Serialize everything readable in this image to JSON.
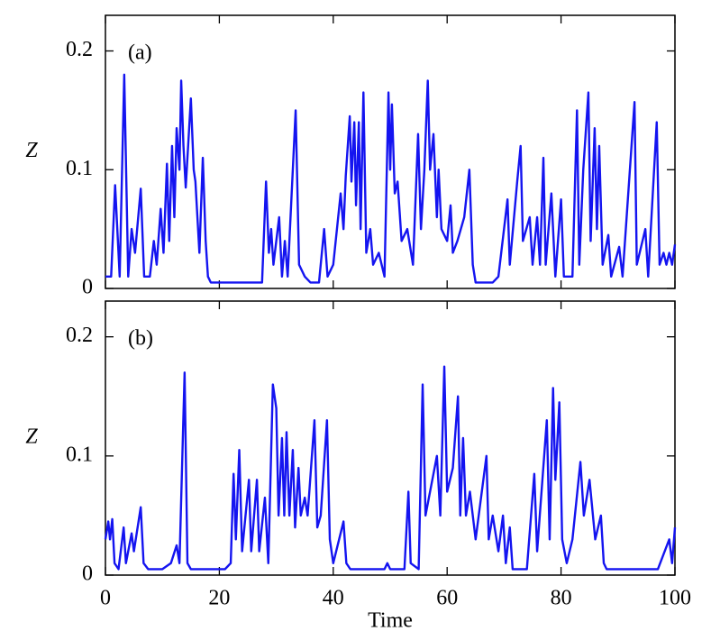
{
  "chart_data": [
    {
      "type": "line",
      "label": "(a)",
      "ylabel": "Z",
      "color": "#1414f0",
      "xlim": [
        0,
        100
      ],
      "ylim": [
        0,
        0.23
      ],
      "xticks": [
        0,
        20,
        40,
        60,
        80,
        100
      ],
      "yticks": [
        0,
        0.1,
        0.2
      ],
      "show_xtick_labels": false,
      "x": [
        0,
        1,
        1.7,
        2.5,
        3.3,
        4,
        4.6,
        5.2,
        6.2,
        6.8,
        7.8,
        8.5,
        9,
        9.7,
        10.2,
        10.8,
        11.2,
        11.7,
        12.1,
        12.5,
        13,
        13.3,
        13.7,
        14.1,
        15,
        15.5,
        15.8,
        16.5,
        17.1,
        17.6,
        18,
        18.5,
        27.5,
        28.2,
        28.7,
        29.1,
        29.5,
        30.5,
        31,
        31.5,
        32,
        33.4,
        34,
        35,
        36,
        37.5,
        38.4,
        39,
        40,
        41.3,
        41.8,
        42.2,
        42.9,
        43.2,
        43.7,
        44,
        44.5,
        44.8,
        45.3,
        45.8,
        46.5,
        47,
        48,
        49,
        49.7,
        50,
        50.3,
        50.8,
        51.3,
        52,
        53,
        54,
        54.9,
        55.4,
        56,
        56.6,
        57,
        57.6,
        58.2,
        58.5,
        59,
        60,
        60.6,
        61,
        61.8,
        63,
        63.9,
        64.5,
        65,
        68,
        69,
        70.6,
        71,
        72.3,
        72.9,
        73.3,
        74.5,
        75,
        75.8,
        76.3,
        76.9,
        77.3,
        78.3,
        79,
        80,
        80.5,
        82,
        82.8,
        83.2,
        83.9,
        84.8,
        85.2,
        85.9,
        86.3,
        86.7,
        87.3,
        88.3,
        88.8,
        90.2,
        90.8,
        92.9,
        93.3,
        94.8,
        95.3,
        96.8,
        97.3,
        98,
        98.5,
        99,
        99.5,
        100
      ],
      "values": [
        0.01,
        0.01,
        0.087,
        0.01,
        0.18,
        0.01,
        0.05,
        0.03,
        0.084,
        0.01,
        0.01,
        0.04,
        0.02,
        0.067,
        0.03,
        0.105,
        0.04,
        0.12,
        0.06,
        0.135,
        0.1,
        0.175,
        0.12,
        0.085,
        0.16,
        0.1,
        0.09,
        0.03,
        0.11,
        0.04,
        0.01,
        0.005,
        0.005,
        0.09,
        0.03,
        0.05,
        0.02,
        0.06,
        0.01,
        0.04,
        0.01,
        0.15,
        0.02,
        0.01,
        0.005,
        0.005,
        0.05,
        0.01,
        0.02,
        0.08,
        0.05,
        0.095,
        0.145,
        0.09,
        0.14,
        0.07,
        0.14,
        0.05,
        0.165,
        0.03,
        0.05,
        0.02,
        0.03,
        0.01,
        0.165,
        0.1,
        0.155,
        0.08,
        0.09,
        0.04,
        0.05,
        0.02,
        0.13,
        0.05,
        0.1,
        0.175,
        0.1,
        0.13,
        0.06,
        0.1,
        0.05,
        0.04,
        0.07,
        0.03,
        0.04,
        0.06,
        0.1,
        0.02,
        0.005,
        0.005,
        0.01,
        0.075,
        0.02,
        0.09,
        0.12,
        0.04,
        0.06,
        0.02,
        0.06,
        0.02,
        0.11,
        0.02,
        0.08,
        0.01,
        0.075,
        0.01,
        0.01,
        0.15,
        0.02,
        0.1,
        0.165,
        0.04,
        0.135,
        0.05,
        0.12,
        0.02,
        0.045,
        0.01,
        0.035,
        0.01,
        0.157,
        0.02,
        0.05,
        0.01,
        0.14,
        0.02,
        0.03,
        0.02,
        0.03,
        0.02,
        0.037
      ]
    },
    {
      "type": "line",
      "label": "(b)",
      "ylabel": "Z",
      "xlabel": "Time",
      "color": "#1414f0",
      "xlim": [
        0,
        100
      ],
      "ylim": [
        0,
        0.23
      ],
      "xticks": [
        0,
        20,
        40,
        60,
        80,
        100
      ],
      "yticks": [
        0,
        0.1,
        0.2
      ],
      "show_xtick_labels": true,
      "x": [
        0,
        0.5,
        0.8,
        1.2,
        1.6,
        2.3,
        3.2,
        3.6,
        4.6,
        5,
        6.2,
        6.7,
        7.5,
        10,
        11.5,
        12.5,
        13,
        13.9,
        14.4,
        15,
        21,
        22,
        22.5,
        22.9,
        23.5,
        24,
        25.2,
        25.6,
        26.6,
        27,
        28,
        28.6,
        29.4,
        30,
        30.4,
        31,
        31.4,
        31.8,
        32.3,
        32.9,
        33.3,
        33.9,
        34.3,
        35,
        35.5,
        36.7,
        37.2,
        37.8,
        38.9,
        39.4,
        40,
        41.8,
        42.3,
        43,
        49,
        49.5,
        50,
        52.5,
        53.2,
        53.6,
        55,
        55.7,
        56.2,
        58.2,
        58.8,
        59.5,
        60,
        61,
        61.9,
        62.3,
        62.8,
        63.3,
        64,
        65,
        66.9,
        67.3,
        68,
        69,
        69.8,
        70.3,
        71,
        71.5,
        74,
        75.3,
        75.8,
        77.5,
        78,
        78.6,
        79,
        79.7,
        80.2,
        81,
        82,
        83.4,
        84,
        85,
        86,
        87,
        87.5,
        88,
        97,
        99,
        99.5,
        100
      ],
      "values": [
        0.03,
        0.045,
        0.03,
        0.047,
        0.01,
        0.005,
        0.04,
        0.01,
        0.035,
        0.02,
        0.057,
        0.01,
        0.005,
        0.005,
        0.01,
        0.025,
        0.01,
        0.17,
        0.01,
        0.005,
        0.005,
        0.01,
        0.085,
        0.03,
        0.105,
        0.02,
        0.08,
        0.02,
        0.08,
        0.02,
        0.065,
        0.01,
        0.16,
        0.14,
        0.05,
        0.115,
        0.05,
        0.12,
        0.05,
        0.105,
        0.04,
        0.09,
        0.05,
        0.065,
        0.05,
        0.13,
        0.04,
        0.05,
        0.13,
        0.03,
        0.01,
        0.045,
        0.01,
        0.005,
        0.005,
        0.01,
        0.005,
        0.005,
        0.07,
        0.01,
        0.005,
        0.16,
        0.05,
        0.1,
        0.05,
        0.175,
        0.07,
        0.09,
        0.15,
        0.05,
        0.115,
        0.05,
        0.07,
        0.03,
        0.1,
        0.03,
        0.05,
        0.02,
        0.05,
        0.01,
        0.04,
        0.005,
        0.005,
        0.085,
        0.02,
        0.13,
        0.03,
        0.157,
        0.08,
        0.145,
        0.03,
        0.01,
        0.03,
        0.095,
        0.05,
        0.08,
        0.03,
        0.05,
        0.01,
        0.005,
        0.005,
        0.03,
        0.01,
        0.04
      ]
    }
  ]
}
